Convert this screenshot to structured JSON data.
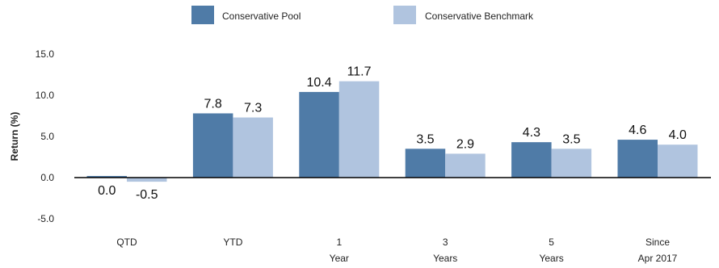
{
  "chart_data": {
    "type": "bar",
    "ylabel": "Return (%)",
    "ylim": [
      -5,
      15
    ],
    "yticks": [
      "-5.0",
      "0.0",
      "5.0",
      "10.0",
      "15.0"
    ],
    "categories": [
      [
        "QTD"
      ],
      [
        "YTD"
      ],
      [
        "1",
        "Year"
      ],
      [
        "3",
        "Years"
      ],
      [
        "5",
        "Years"
      ],
      [
        "Since",
        "Apr 2017"
      ]
    ],
    "series": [
      {
        "name": "Conservative Pool",
        "color": "#4f7ba7",
        "values": [
          0.0,
          7.8,
          10.4,
          3.5,
          4.3,
          4.6
        ],
        "labels": [
          "0.0",
          "7.8",
          "10.4",
          "3.5",
          "4.3",
          "4.6"
        ]
      },
      {
        "name": "Conservative Benchmark",
        "color": "#b0c4df",
        "values": [
          -0.5,
          7.3,
          11.7,
          2.9,
          3.5,
          4.0
        ],
        "labels": [
          "-0.5",
          "7.3",
          "11.7",
          "2.9",
          "3.5",
          "4.0"
        ]
      }
    ],
    "legend": "top-center",
    "grid": false
  }
}
